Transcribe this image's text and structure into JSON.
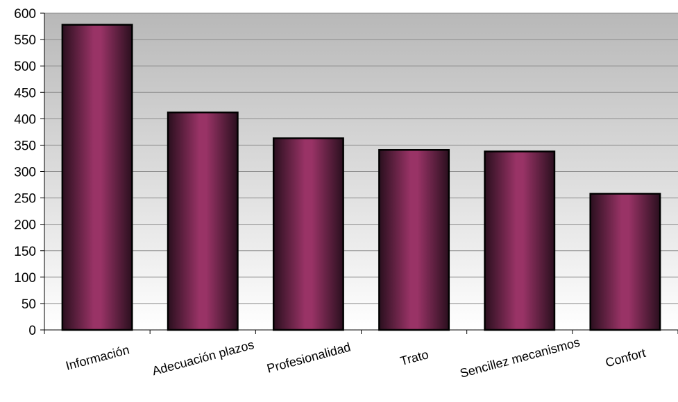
{
  "chart_data": {
    "type": "bar",
    "title": "",
    "xlabel": "",
    "ylabel": "",
    "categories": [
      "Información",
      "Adecuación plazos",
      "Profesionalidad",
      "Trato",
      "Sencillez mecanismos",
      "Confort"
    ],
    "values": [
      578,
      412,
      363,
      341,
      338,
      258
    ],
    "ylim": [
      0,
      600
    ],
    "yticks": [
      0,
      50,
      100,
      150,
      200,
      250,
      300,
      350,
      400,
      450,
      500,
      550,
      600
    ],
    "grid": true,
    "legend": "none",
    "colors": {
      "bar_center": "#993366",
      "bar_edge": "#2a0f1e",
      "bar_outline": "#000000",
      "plot_bg_top": "#b8b8b8",
      "plot_bg_bottom": "#ffffff",
      "gridline": "#8c8c8c"
    }
  }
}
